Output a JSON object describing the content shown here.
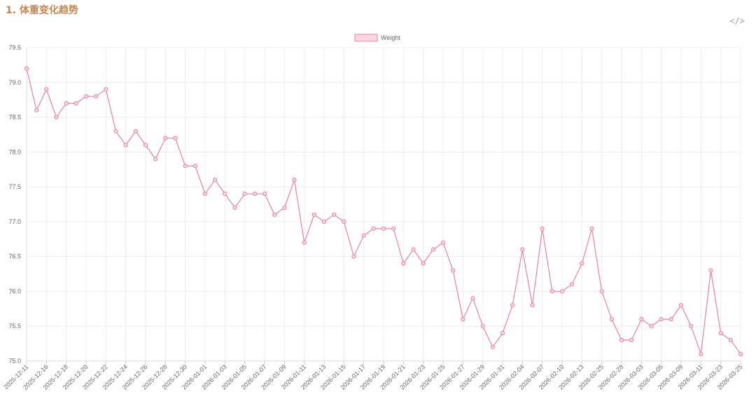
{
  "page": {
    "title": "1. 体重变化趋势",
    "code_icon": "</>"
  },
  "colors": {
    "series": "#e8829e",
    "series_fill": "#fbd7e0",
    "grid": "#ececec",
    "title": "#c8854f"
  },
  "chart_data": {
    "type": "line",
    "title": "",
    "xlabel": "",
    "ylabel": "",
    "ylim": [
      75.0,
      79.5
    ],
    "yticks": [
      "79.5",
      "79.0",
      "78.5",
      "78.0",
      "77.5",
      "77.0",
      "76.5",
      "76.0",
      "75.5",
      "75.0"
    ],
    "legend": "top-center",
    "grid": true,
    "x_tick_labels": [
      "2025-12-11",
      "2025-12-16",
      "2025-12-18",
      "2025-12-20",
      "2025-12-22",
      "2025-12-24",
      "2025-12-26",
      "2025-12-28",
      "2025-12-30",
      "2026-01-01",
      "2026-01-03",
      "2026-01-05",
      "2026-01-07",
      "2026-01-09",
      "2026-01-11",
      "2026-01-13",
      "2026-01-15",
      "2026-01-17",
      "2026-01-19",
      "2026-01-21",
      "2026-01-23",
      "2026-01-25",
      "2026-01-27",
      "2026-01-29",
      "2026-01-31",
      "2026-02-04",
      "2026-02-07",
      "2026-02-10",
      "2026-02-13",
      "2026-02-25",
      "2026-02-28",
      "2026-03-03",
      "2026-03-05",
      "2026-03-09",
      "2026-03-11",
      "2026-03-23",
      "2026-03-25"
    ],
    "series": [
      {
        "name": "Weight",
        "values": [
          79.2,
          78.6,
          78.9,
          78.5,
          78.7,
          78.7,
          78.8,
          78.8,
          78.9,
          78.3,
          78.1,
          78.3,
          78.1,
          77.9,
          78.2,
          78.2,
          77.8,
          77.8,
          77.4,
          77.6,
          77.4,
          77.2,
          77.4,
          77.4,
          77.4,
          77.1,
          77.2,
          77.6,
          76.7,
          77.1,
          77.0,
          77.1,
          77.0,
          76.5,
          76.8,
          76.9,
          76.9,
          76.9,
          76.4,
          76.6,
          76.4,
          76.6,
          76.7,
          76.3,
          75.6,
          75.9,
          75.5,
          75.2,
          75.4,
          75.8,
          76.6,
          75.8,
          76.9,
          76.0,
          76.0,
          76.1,
          76.4,
          76.9,
          76.0,
          75.6,
          75.3,
          75.3,
          75.6,
          75.5,
          75.6,
          75.6,
          75.8,
          75.5,
          75.1,
          76.3,
          75.4,
          75.3,
          75.1
        ]
      }
    ]
  }
}
